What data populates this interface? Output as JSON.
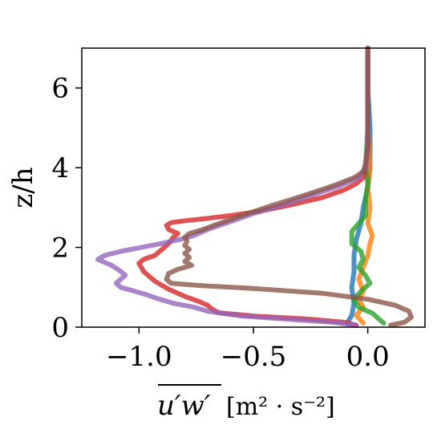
{
  "chart_data": {
    "type": "line",
    "ylabel": "z/h",
    "xlabel": {
      "main": "u′w′",
      "unit": "[m² · s⁻²]"
    },
    "xlim": [
      -1.25,
      0.25
    ],
    "ylim": [
      0,
      7
    ],
    "xticks": [
      {
        "value": -1.0,
        "label": "−1.0"
      },
      {
        "value": -0.5,
        "label": "−0.5"
      },
      {
        "value": 0.0,
        "label": "0.0"
      }
    ],
    "yticks": [
      {
        "value": 0,
        "label": "0"
      },
      {
        "value": 2,
        "label": "2"
      },
      {
        "value": 4,
        "label": "4"
      },
      {
        "value": 6,
        "label": "6"
      }
    ],
    "grid": false,
    "legend": "none",
    "series": [
      {
        "color": "#1f77b4",
        "points": [
          [
            -0.09,
            0.1
          ],
          [
            -0.07,
            0.3
          ],
          [
            -0.06,
            0.6
          ],
          [
            -0.07,
            1.0
          ],
          [
            -0.06,
            1.4
          ],
          [
            -0.06,
            1.8
          ],
          [
            -0.05,
            2.2
          ],
          [
            -0.03,
            2.6
          ],
          [
            -0.02,
            3.0
          ],
          [
            0.0,
            3.5
          ],
          [
            0.01,
            4.0
          ],
          [
            0.01,
            5.0
          ],
          [
            0.0,
            6.0
          ],
          [
            0.0,
            7.0
          ]
        ]
      },
      {
        "color": "#ff7f0e",
        "points": [
          [
            -0.02,
            0.1
          ],
          [
            -0.05,
            0.3
          ],
          [
            -0.02,
            0.5
          ],
          [
            -0.04,
            0.7
          ],
          [
            -0.02,
            0.9
          ],
          [
            -0.04,
            1.2
          ],
          [
            -0.02,
            1.5
          ],
          [
            0.0,
            1.8
          ],
          [
            0.01,
            2.1
          ],
          [
            0.02,
            2.3
          ],
          [
            0.0,
            2.6
          ],
          [
            0.01,
            3.0
          ],
          [
            0.0,
            3.5
          ],
          [
            0.01,
            4.0
          ],
          [
            0.0,
            5.0
          ],
          [
            0.0,
            6.0
          ],
          [
            0.0,
            7.0
          ]
        ]
      },
      {
        "color": "#2ca02c",
        "points": [
          [
            0.07,
            0.1
          ],
          [
            0.05,
            0.2
          ],
          [
            0.02,
            0.35
          ],
          [
            -0.04,
            0.5
          ],
          [
            -0.06,
            0.7
          ],
          [
            -0.03,
            0.9
          ],
          [
            0.01,
            1.1
          ],
          [
            -0.01,
            1.3
          ],
          [
            -0.04,
            1.5
          ],
          [
            -0.02,
            1.7
          ],
          [
            -0.03,
            1.9
          ],
          [
            -0.07,
            2.1
          ],
          [
            -0.07,
            2.4
          ],
          [
            -0.04,
            2.6
          ],
          [
            -0.01,
            2.8
          ],
          [
            -0.01,
            3.2
          ],
          [
            0.0,
            3.6
          ],
          [
            -0.01,
            4.0
          ],
          [
            0.0,
            5.0
          ],
          [
            0.0,
            6.0
          ],
          [
            0.0,
            7.0
          ]
        ]
      },
      {
        "color": "#d62728",
        "points": [
          [
            -0.05,
            0.05
          ],
          [
            -0.1,
            0.12
          ],
          [
            -0.25,
            0.2
          ],
          [
            -0.5,
            0.28
          ],
          [
            -0.65,
            0.36
          ],
          [
            -0.68,
            0.45
          ],
          [
            -0.7,
            0.55
          ],
          [
            -0.74,
            0.65
          ],
          [
            -0.79,
            0.75
          ],
          [
            -0.83,
            0.85
          ],
          [
            -0.87,
            0.95
          ],
          [
            -0.9,
            1.05
          ],
          [
            -0.93,
            1.15
          ],
          [
            -0.96,
            1.3
          ],
          [
            -0.98,
            1.4
          ],
          [
            -0.99,
            1.5
          ],
          [
            -1.0,
            1.6
          ],
          [
            -0.98,
            1.7
          ],
          [
            -0.93,
            1.8
          ],
          [
            -0.9,
            1.95
          ],
          [
            -0.87,
            2.1
          ],
          [
            -0.85,
            2.25
          ],
          [
            -0.83,
            2.35
          ],
          [
            -0.87,
            2.45
          ],
          [
            -0.88,
            2.55
          ],
          [
            -0.86,
            2.62
          ],
          [
            -0.8,
            2.67
          ],
          [
            -0.7,
            2.73
          ],
          [
            -0.6,
            2.8
          ],
          [
            -0.48,
            2.9
          ],
          [
            -0.35,
            3.05
          ],
          [
            -0.2,
            3.25
          ],
          [
            -0.1,
            3.45
          ],
          [
            -0.05,
            3.6
          ],
          [
            -0.02,
            3.75
          ],
          [
            -0.01,
            4.0
          ],
          [
            0.0,
            4.5
          ],
          [
            0.0,
            5.0
          ],
          [
            0.0,
            6.0
          ],
          [
            0.0,
            7.0
          ]
        ]
      },
      {
        "color": "#9467bd",
        "points": [
          [
            -0.05,
            0.05
          ],
          [
            -0.15,
            0.12
          ],
          [
            -0.35,
            0.2
          ],
          [
            -0.55,
            0.28
          ],
          [
            -0.7,
            0.4
          ],
          [
            -0.76,
            0.5
          ],
          [
            -0.85,
            0.6
          ],
          [
            -0.92,
            0.72
          ],
          [
            -0.97,
            0.82
          ],
          [
            -1.03,
            0.92
          ],
          [
            -1.08,
            1.0
          ],
          [
            -1.1,
            1.1
          ],
          [
            -1.08,
            1.2
          ],
          [
            -1.06,
            1.3
          ],
          [
            -1.08,
            1.4
          ],
          [
            -1.12,
            1.55
          ],
          [
            -1.18,
            1.7
          ],
          [
            -1.15,
            1.8
          ],
          [
            -1.08,
            1.9
          ],
          [
            -0.99,
            2.0
          ],
          [
            -0.9,
            2.1
          ],
          [
            -0.82,
            2.2
          ],
          [
            -0.76,
            2.3
          ],
          [
            -0.7,
            2.45
          ],
          [
            -0.6,
            2.65
          ],
          [
            -0.5,
            2.85
          ],
          [
            -0.38,
            3.05
          ],
          [
            -0.25,
            3.3
          ],
          [
            -0.12,
            3.55
          ],
          [
            -0.04,
            3.75
          ],
          [
            -0.01,
            4.0
          ],
          [
            0.0,
            4.5
          ],
          [
            0.0,
            5.0
          ],
          [
            0.0,
            6.0
          ],
          [
            0.0,
            7.0
          ]
        ]
      },
      {
        "color": "#8c564b",
        "points": [
          [
            0.1,
            0.05
          ],
          [
            0.16,
            0.12
          ],
          [
            0.19,
            0.25
          ],
          [
            0.18,
            0.4
          ],
          [
            0.12,
            0.55
          ],
          [
            0.0,
            0.7
          ],
          [
            -0.2,
            0.85
          ],
          [
            -0.5,
            0.97
          ],
          [
            -0.75,
            1.05
          ],
          [
            -0.86,
            1.1
          ],
          [
            -0.88,
            1.2
          ],
          [
            -0.87,
            1.35
          ],
          [
            -0.83,
            1.45
          ],
          [
            -0.77,
            1.55
          ],
          [
            -0.8,
            1.65
          ],
          [
            -0.78,
            1.75
          ],
          [
            -0.8,
            1.85
          ],
          [
            -0.78,
            1.95
          ],
          [
            -0.8,
            2.05
          ],
          [
            -0.79,
            2.15
          ],
          [
            -0.8,
            2.25
          ],
          [
            -0.78,
            2.35
          ],
          [
            -0.72,
            2.45
          ],
          [
            -0.65,
            2.6
          ],
          [
            -0.55,
            2.8
          ],
          [
            -0.42,
            3.05
          ],
          [
            -0.28,
            3.3
          ],
          [
            -0.15,
            3.55
          ],
          [
            -0.06,
            3.75
          ],
          [
            -0.02,
            3.9
          ],
          [
            -0.01,
            4.1
          ],
          [
            0.0,
            4.5
          ],
          [
            0.0,
            5.0
          ],
          [
            0.0,
            6.0
          ],
          [
            0.0,
            7.0
          ]
        ]
      }
    ]
  }
}
